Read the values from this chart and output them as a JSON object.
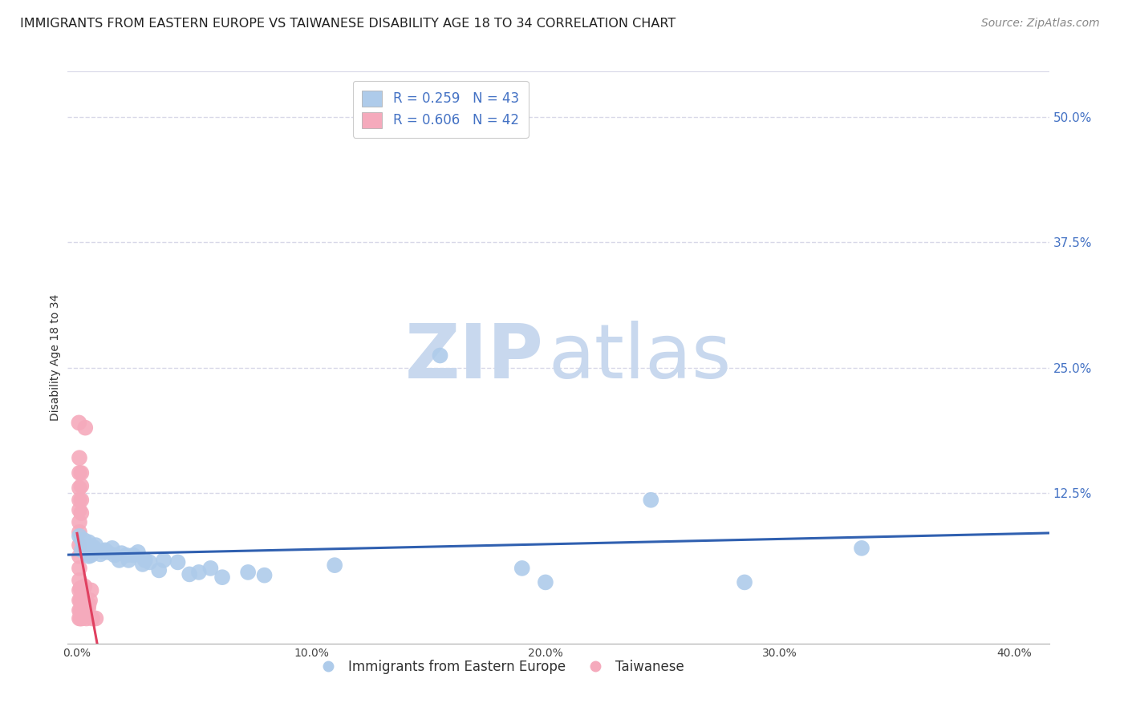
{
  "title": "IMMIGRANTS FROM EASTERN EUROPE VS TAIWANESE DISABILITY AGE 18 TO 34 CORRELATION CHART",
  "source": "Source: ZipAtlas.com",
  "ylabel": "Disability Age 18 to 34",
  "x_tick_labels": [
    "0.0%",
    "10.0%",
    "20.0%",
    "30.0%",
    "40.0%"
  ],
  "x_tick_vals": [
    0.0,
    0.1,
    0.2,
    0.3,
    0.4
  ],
  "y_tick_labels": [
    "12.5%",
    "25.0%",
    "37.5%",
    "50.0%"
  ],
  "y_tick_vals": [
    0.125,
    0.25,
    0.375,
    0.5
  ],
  "xlim": [
    -0.004,
    0.415
  ],
  "ylim": [
    -0.025,
    0.545
  ],
  "legend_R_blue": "R = 0.259",
  "legend_N_blue": "N = 43",
  "legend_R_pink": "R = 0.606",
  "legend_N_pink": "N = 42",
  "legend_label_blue": "Immigrants from Eastern Europe",
  "legend_label_pink": "Taiwanese",
  "blue_color": "#aecbea",
  "blue_line_color": "#3060b0",
  "pink_color": "#f5aabc",
  "pink_line_color": "#e04060",
  "pink_dash_color": "#e8a0b0",
  "blue_scatter": [
    [
      0.001,
      0.082
    ],
    [
      0.002,
      0.078
    ],
    [
      0.002,
      0.068
    ],
    [
      0.003,
      0.074
    ],
    [
      0.003,
      0.078
    ],
    [
      0.004,
      0.065
    ],
    [
      0.004,
      0.071
    ],
    [
      0.005,
      0.062
    ],
    [
      0.005,
      0.076
    ],
    [
      0.006,
      0.063
    ],
    [
      0.007,
      0.071
    ],
    [
      0.008,
      0.073
    ],
    [
      0.01,
      0.064
    ],
    [
      0.011,
      0.067
    ],
    [
      0.012,
      0.068
    ],
    [
      0.013,
      0.066
    ],
    [
      0.015,
      0.07
    ],
    [
      0.016,
      0.063
    ],
    [
      0.018,
      0.058
    ],
    [
      0.019,
      0.065
    ],
    [
      0.021,
      0.063
    ],
    [
      0.022,
      0.058
    ],
    [
      0.024,
      0.063
    ],
    [
      0.026,
      0.066
    ],
    [
      0.028,
      0.054
    ],
    [
      0.029,
      0.058
    ],
    [
      0.031,
      0.056
    ],
    [
      0.035,
      0.048
    ],
    [
      0.037,
      0.058
    ],
    [
      0.043,
      0.056
    ],
    [
      0.048,
      0.044
    ],
    [
      0.052,
      0.046
    ],
    [
      0.057,
      0.05
    ],
    [
      0.062,
      0.041
    ],
    [
      0.073,
      0.046
    ],
    [
      0.08,
      0.043
    ],
    [
      0.11,
      0.053
    ],
    [
      0.155,
      0.262
    ],
    [
      0.19,
      0.05
    ],
    [
      0.2,
      0.036
    ],
    [
      0.245,
      0.118
    ],
    [
      0.285,
      0.036
    ],
    [
      0.335,
      0.07
    ]
  ],
  "pink_scatter": [
    [
      0.0008,
      0.195
    ],
    [
      0.001,
      0.16
    ],
    [
      0.001,
      0.145
    ],
    [
      0.001,
      0.13
    ],
    [
      0.001,
      0.118
    ],
    [
      0.001,
      0.108
    ],
    [
      0.001,
      0.096
    ],
    [
      0.001,
      0.086
    ],
    [
      0.001,
      0.073
    ],
    [
      0.001,
      0.062
    ],
    [
      0.001,
      0.05
    ],
    [
      0.001,
      0.038
    ],
    [
      0.001,
      0.028
    ],
    [
      0.001,
      0.018
    ],
    [
      0.001,
      0.008
    ],
    [
      0.001,
      0.0
    ],
    [
      0.0015,
      0.03
    ],
    [
      0.0015,
      0.018
    ],
    [
      0.0015,
      0.008
    ],
    [
      0.0015,
      0.0
    ],
    [
      0.0018,
      0.145
    ],
    [
      0.0018,
      0.132
    ],
    [
      0.0018,
      0.118
    ],
    [
      0.0018,
      0.105
    ],
    [
      0.002,
      0.008
    ],
    [
      0.002,
      0.0
    ],
    [
      0.0022,
      0.025
    ],
    [
      0.0022,
      0.015
    ],
    [
      0.0025,
      0.022
    ],
    [
      0.0025,
      0.012
    ],
    [
      0.0028,
      0.03
    ],
    [
      0.0028,
      0.02
    ],
    [
      0.0032,
      0.032
    ],
    [
      0.0035,
      0.19
    ],
    [
      0.004,
      0.0
    ],
    [
      0.004,
      0.005
    ],
    [
      0.0048,
      0.01
    ],
    [
      0.005,
      0.014
    ],
    [
      0.0055,
      0.018
    ],
    [
      0.006,
      0.028
    ],
    [
      0.0065,
      0.0
    ],
    [
      0.008,
      0.0
    ]
  ],
  "grid_color": "#d8d8e8",
  "background_color": "#ffffff",
  "watermark_text_zip": "ZIP",
  "watermark_text_atlas": "atlas",
  "watermark_color_zip": "#c8d8ee",
  "watermark_color_atlas": "#c8d8ee",
  "title_fontsize": 11.5,
  "axis_label_fontsize": 10,
  "tick_fontsize": 10,
  "legend_fontsize": 12,
  "source_fontsize": 10
}
